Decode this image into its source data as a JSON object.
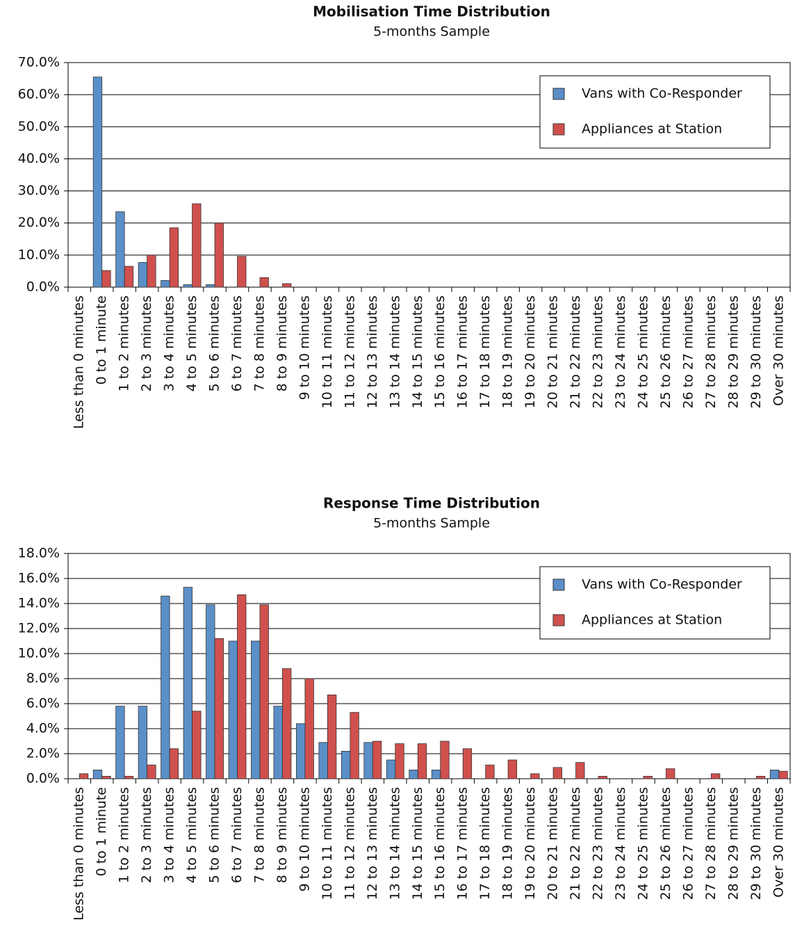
{
  "chart_data": [
    {
      "type": "bar",
      "title": "Mobilisation Time Distribution",
      "subtitle": "5-months Sample",
      "categories": [
        "Less than 0 minutes",
        "0 to 1 minute",
        "1 to 2 minutes",
        "2 to 3 minutes",
        "3 to 4 minutes",
        "4 to 5 minutes",
        "5 to 6 minutes",
        "6 to 7 minutes",
        "7 to 8 minutes",
        "8 to 9 minutes",
        "9 to 10 minutes",
        "10 to 11 minutes",
        "11 to 12 minutes",
        "12 to 13 minutes",
        "13 to 14 minutes",
        "14 to 15 minutes",
        "15 to 16 minutes",
        "16 to 17 minutes",
        "17 to 18 minutes",
        "18 to 19 minutes",
        "19 to 20 minutes",
        "20 to 21 minutes",
        "21 to 22 minutes",
        "22 to 23 minutes",
        "23 to 24 minutes",
        "24 to 25 minutes",
        "25 to 26 minutes",
        "26 to 27 minutes",
        "27 to 28 minutes",
        "28 to 29 minutes",
        "29 to 30 minutes",
        "Over 30 minutes"
      ],
      "series": [
        {
          "name": "Vans with Co-Responder",
          "color": "#5b8fc8",
          "values": [
            0,
            65.5,
            23.5,
            7.7,
            2.1,
            0.8,
            0.8,
            0,
            0,
            0,
            0,
            0,
            0,
            0,
            0,
            0,
            0,
            0,
            0,
            0,
            0,
            0,
            0,
            0,
            0,
            0,
            0,
            0,
            0,
            0,
            0,
            0
          ]
        },
        {
          "name": "Appliances at Station",
          "color": "#d0504d",
          "values": [
            0,
            5.2,
            6.5,
            10,
            18.5,
            26,
            20,
            9.6,
            3,
            1.1,
            0,
            0,
            0,
            0,
            0,
            0,
            0,
            0,
            0,
            0,
            0,
            0,
            0,
            0,
            0,
            0,
            0,
            0,
            0,
            0,
            0,
            0
          ]
        }
      ],
      "ylim": [
        0,
        70
      ],
      "yticks": [
        {
          "value": 0,
          "label": "0.0%"
        },
        {
          "value": 10,
          "label": "10.0%"
        },
        {
          "value": 20,
          "label": "20.0%"
        },
        {
          "value": 30,
          "label": "30.0%"
        },
        {
          "value": 40,
          "label": "40.0%"
        },
        {
          "value": 50,
          "label": "50.0%"
        },
        {
          "value": 60,
          "label": "60.0%"
        },
        {
          "value": 70,
          "label": "70.0%"
        }
      ],
      "grid": true,
      "legend": "upper right"
    },
    {
      "type": "bar",
      "title": "Response Time Distribution",
      "subtitle": "5-months Sample",
      "categories": [
        "Less than 0 minutes",
        "0 to 1 minute",
        "1 to 2 minutes",
        "2 to 3 minutes",
        "3 to 4 minutes",
        "4 to 5 minutes",
        "5 to 6 minutes",
        "6 to 7 minutes",
        "7 to 8 minutes",
        "8 to 9 minutes",
        "9 to 10 minutes",
        "10 to 11 minutes",
        "11 to 12 minutes",
        "12 to 13 minutes",
        "13 to 14 minutes",
        "14 to 15 minutes",
        "15 to 16 minutes",
        "16 to 17 minutes",
        "17 to 18 minutes",
        "18 to 19 minutes",
        "19 to 20 minutes",
        "20 to 21 minutes",
        "21 to 22 minutes",
        "22 to 23 minutes",
        "23 to 24 minutes",
        "24 to 25 minutes",
        "25 to 26 minutes",
        "26 to 27 minutes",
        "27 to 28 minutes",
        "28 to 29 minutes",
        "29 to 30 minutes",
        "Over 30 minutes"
      ],
      "series": [
        {
          "name": "Vans with Co-Responder",
          "color": "#5b8fc8",
          "values": [
            0,
            0.7,
            5.8,
            5.8,
            14.6,
            15.3,
            13.9,
            11.0,
            11.0,
            5.8,
            4.4,
            2.9,
            2.2,
            2.9,
            1.5,
            0.7,
            0.7,
            0,
            0,
            0,
            0,
            0,
            0,
            0,
            0,
            0,
            0,
            0,
            0,
            0,
            0,
            0.7
          ]
        },
        {
          "name": "Appliances at Station",
          "color": "#d0504d",
          "values": [
            0.4,
            0.2,
            0.2,
            1.1,
            2.4,
            5.4,
            11.2,
            14.7,
            13.9,
            8.8,
            8.0,
            6.7,
            5.3,
            3.0,
            2.8,
            2.8,
            3.0,
            2.4,
            1.1,
            1.5,
            0.4,
            0.9,
            1.3,
            0.2,
            0,
            0.2,
            0.8,
            0,
            0.4,
            0,
            0.2,
            0.6
          ]
        }
      ],
      "ylim": [
        0,
        18
      ],
      "yticks": [
        {
          "value": 0,
          "label": "0.0%"
        },
        {
          "value": 2,
          "label": "2.0%"
        },
        {
          "value": 4,
          "label": "4.0%"
        },
        {
          "value": 6,
          "label": "6.0%"
        },
        {
          "value": 8,
          "label": "8.0%"
        },
        {
          "value": 10,
          "label": "10.0%"
        },
        {
          "value": 12,
          "label": "12.0%"
        },
        {
          "value": 14,
          "label": "14.0%"
        },
        {
          "value": 16,
          "label": "16.0%"
        },
        {
          "value": 18,
          "label": "18.0%"
        }
      ],
      "grid": true,
      "legend": "upper right"
    }
  ]
}
